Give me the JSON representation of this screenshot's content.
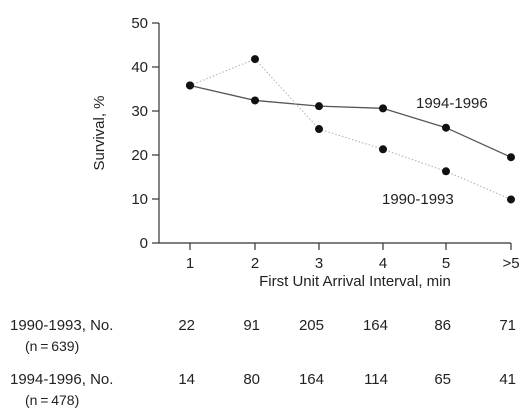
{
  "chart_data": {
    "type": "line",
    "categories": [
      "1",
      "2",
      "3",
      "4",
      "5",
      ">5"
    ],
    "xlabel": "First Unit Arrival Interval, min",
    "ylabel": "Survival, %",
    "ylim": [
      0,
      50
    ],
    "yticks": [
      "0",
      "10",
      "20",
      "30",
      "40",
      "50"
    ],
    "grid": false,
    "series": [
      {
        "name": "1994-1996",
        "values": [
          35.8,
          32.4,
          31.1,
          30.6,
          26.2,
          19.5
        ],
        "color": "#555555",
        "style": "solid"
      },
      {
        "name": "1990-1993",
        "values": [
          35.8,
          41.8,
          25.9,
          21.3,
          16.3,
          9.9
        ],
        "color": "#bbbbbb",
        "style": "dotted"
      }
    ]
  },
  "table": {
    "rows": [
      {
        "label": "1990-1993, No.",
        "sub": "(n = 639)",
        "values": [
          "22",
          "91",
          "205",
          "164",
          "86",
          "71"
        ]
      },
      {
        "label": "1994-1996, No.",
        "sub": "(n = 478)",
        "values": [
          "14",
          "80",
          "164",
          "114",
          "65",
          "41"
        ]
      }
    ]
  }
}
